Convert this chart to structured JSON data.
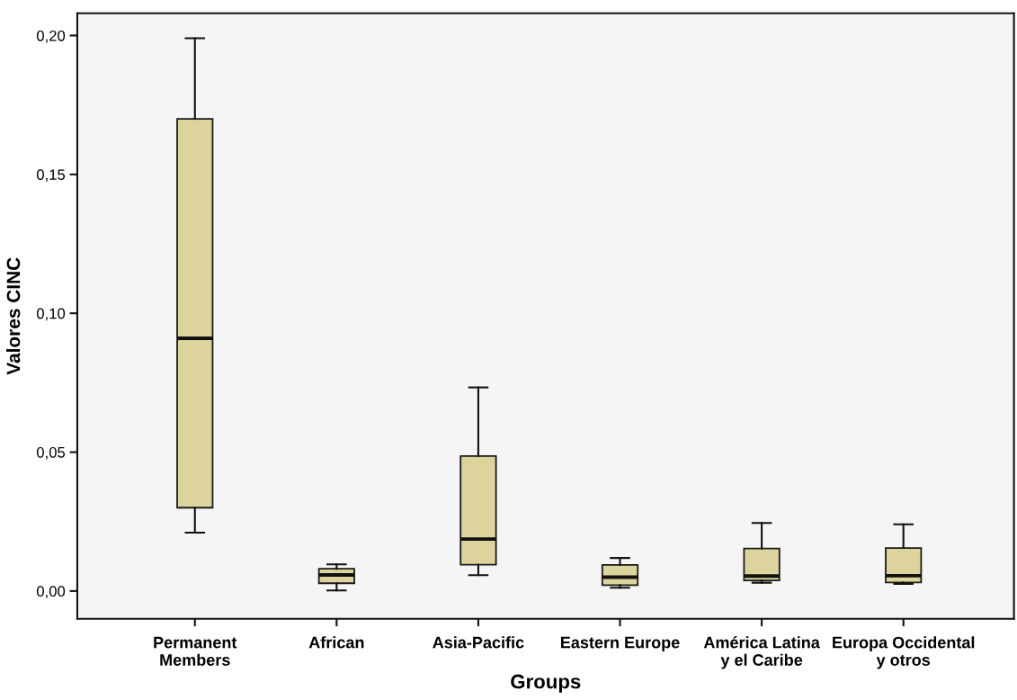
{
  "chart_data": {
    "type": "box",
    "xlabel": "Groups",
    "ylabel": "Valores CINC",
    "categories": [
      "Permanent\nMembers",
      "African",
      "Asia-Pacific",
      "Eastern Europe",
      "América Latina\ny el Caribe",
      "Europa Occidental\ny otros"
    ],
    "series": [
      {
        "color": "#dcd49c",
        "boxes": [
          {
            "low": 0.021,
            "q1": 0.03,
            "median": 0.091,
            "q3": 0.17,
            "high": 0.199
          },
          {
            "low": 0.0002,
            "q1": 0.0028,
            "median": 0.0058,
            "q3": 0.008,
            "high": 0.0096
          },
          {
            "low": 0.0057,
            "q1": 0.0095,
            "median": 0.0187,
            "q3": 0.0486,
            "high": 0.0733
          },
          {
            "low": 0.0012,
            "q1": 0.0021,
            "median": 0.005,
            "q3": 0.0094,
            "high": 0.0119
          },
          {
            "low": 0.003,
            "q1": 0.0038,
            "median": 0.0054,
            "q3": 0.0153,
            "high": 0.0245
          },
          {
            "low": 0.0026,
            "q1": 0.0031,
            "median": 0.0055,
            "q3": 0.0155,
            "high": 0.024
          }
        ]
      }
    ],
    "ylim": [
      -0.01,
      0.208
    ],
    "yticks": [
      {
        "value": 0,
        "label": "0,00"
      },
      {
        "value": 0.05,
        "label": "0,05"
      },
      {
        "value": 0.1,
        "label": "0,10"
      },
      {
        "value": 0.15,
        "label": "0,15"
      },
      {
        "value": 0.2,
        "label": "0,20"
      }
    ]
  }
}
